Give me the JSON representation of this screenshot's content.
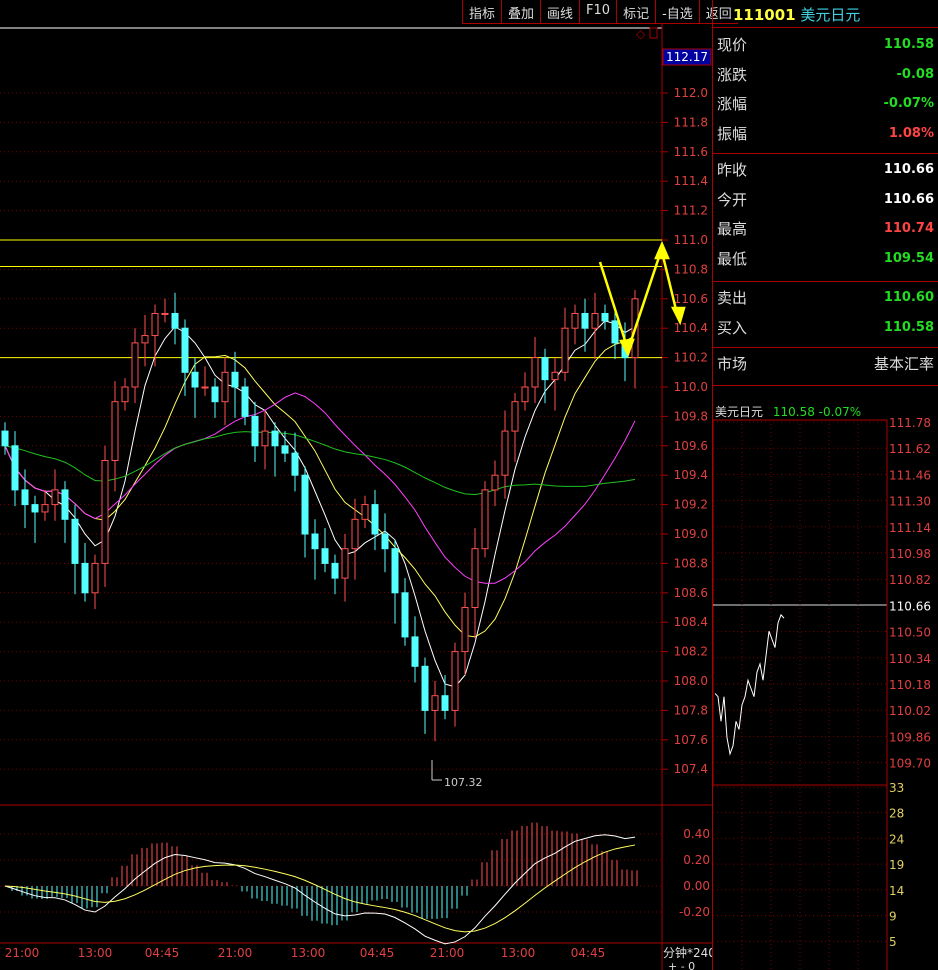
{
  "toolbar": {
    "items": [
      "指标",
      "叠加",
      "画线",
      "F10",
      "标记",
      "-自选",
      "返回"
    ]
  },
  "header": {
    "code": "111001",
    "name": "美元日元"
  },
  "quote": {
    "rows1": [
      {
        "label": "现价",
        "value": "110.58",
        "color": "#22dd22"
      },
      {
        "label": "涨跌",
        "value": "-0.08",
        "color": "#22dd22"
      },
      {
        "label": "涨幅",
        "value": "-0.07%",
        "color": "#22dd22"
      },
      {
        "label": "振幅",
        "value": "1.08%",
        "color": "#ff4444"
      }
    ],
    "rows2": [
      {
        "label": "昨收",
        "value": "110.66",
        "color": "#ffffff"
      },
      {
        "label": "今开",
        "value": "110.66",
        "color": "#ffffff"
      },
      {
        "label": "最高",
        "value": "110.74",
        "color": "#ff4444"
      },
      {
        "label": "最低",
        "value": "109.54",
        "color": "#22dd22"
      }
    ],
    "rows3": [
      {
        "label": "卖出",
        "value": "110.60",
        "color": "#22dd22"
      },
      {
        "label": "买入",
        "value": "110.58",
        "color": "#22dd22"
      }
    ],
    "market_label": "市场",
    "market_value": "基本汇率"
  },
  "mini": {
    "name": "美元日元",
    "price": "110.58",
    "change": "-0.07%",
    "price_ticks": [
      "111.78",
      "111.62",
      "111.46",
      "111.30",
      "111.14",
      "110.98",
      "110.82",
      "110.66",
      "110.50",
      "110.34",
      "110.18",
      "110.02",
      "109.86",
      "109.70"
    ],
    "volume_ticks": [
      "33",
      "28",
      "24",
      "19",
      "14",
      "9",
      "5"
    ],
    "line": [
      110.12,
      110.1,
      109.95,
      110.1,
      109.85,
      109.75,
      109.8,
      109.95,
      109.9,
      110.05,
      110.1,
      110.2,
      110.15,
      110.1,
      110.25,
      110.3,
      110.2,
      110.35,
      110.5,
      110.45,
      110.4,
      110.55,
      110.6,
      110.58
    ]
  },
  "chart_data": {
    "type": "candlestick",
    "current_price_label": "112.17",
    "y_ticks": [
      "112.0",
      "111.8",
      "111.6",
      "111.4",
      "111.2",
      "111.0",
      "110.8",
      "110.6",
      "110.4",
      "110.2",
      "110.0",
      "109.8",
      "109.6",
      "109.4",
      "109.2",
      "109.0",
      "108.8",
      "108.6",
      "108.4",
      "108.2",
      "108.0",
      "107.8",
      "107.6",
      "107.4"
    ],
    "ylim": [
      107.2,
      112.2
    ],
    "close": [
      109.6,
      109.3,
      109.2,
      109.15,
      109.2,
      109.3,
      109.1,
      108.8,
      108.6,
      108.8,
      109.5,
      109.9,
      110.0,
      110.3,
      110.35,
      110.5,
      110.5,
      110.4,
      110.1,
      110.0,
      110.0,
      109.9,
      110.1,
      110.0,
      109.8,
      109.6,
      109.7,
      109.6,
      109.55,
      109.4,
      109.0,
      108.9,
      108.8,
      108.7,
      108.9,
      109.1,
      109.2,
      109.0,
      108.9,
      108.6,
      108.3,
      108.1,
      107.8,
      107.9,
      107.8,
      108.2,
      108.5,
      108.9,
      109.3,
      109.4,
      109.7,
      109.9,
      110.0,
      110.2,
      110.05,
      110.1,
      110.4,
      110.5,
      110.4,
      110.5,
      110.45,
      110.3,
      110.2,
      110.6
    ],
    "low_annotation": "107.32",
    "horizontal_lines": [
      111.0,
      110.82,
      110.2
    ],
    "x_labels": [
      "21:00",
      "13:00",
      "04:45",
      "21:00",
      "13:00",
      "04:45",
      "21:00",
      "13:00",
      "04:45"
    ],
    "macd_ticks": [
      "0.40",
      "0.20",
      "0.00",
      "-0.20"
    ],
    "period_label": "分钟*240",
    "colors": {
      "up": "#ff5050",
      "down": "#54ffff",
      "ma5": "#ffffff",
      "ma10": "#ffff60",
      "ma20": "#ff40ff",
      "ma60": "#20c020",
      "annot": "#ffff00"
    }
  }
}
